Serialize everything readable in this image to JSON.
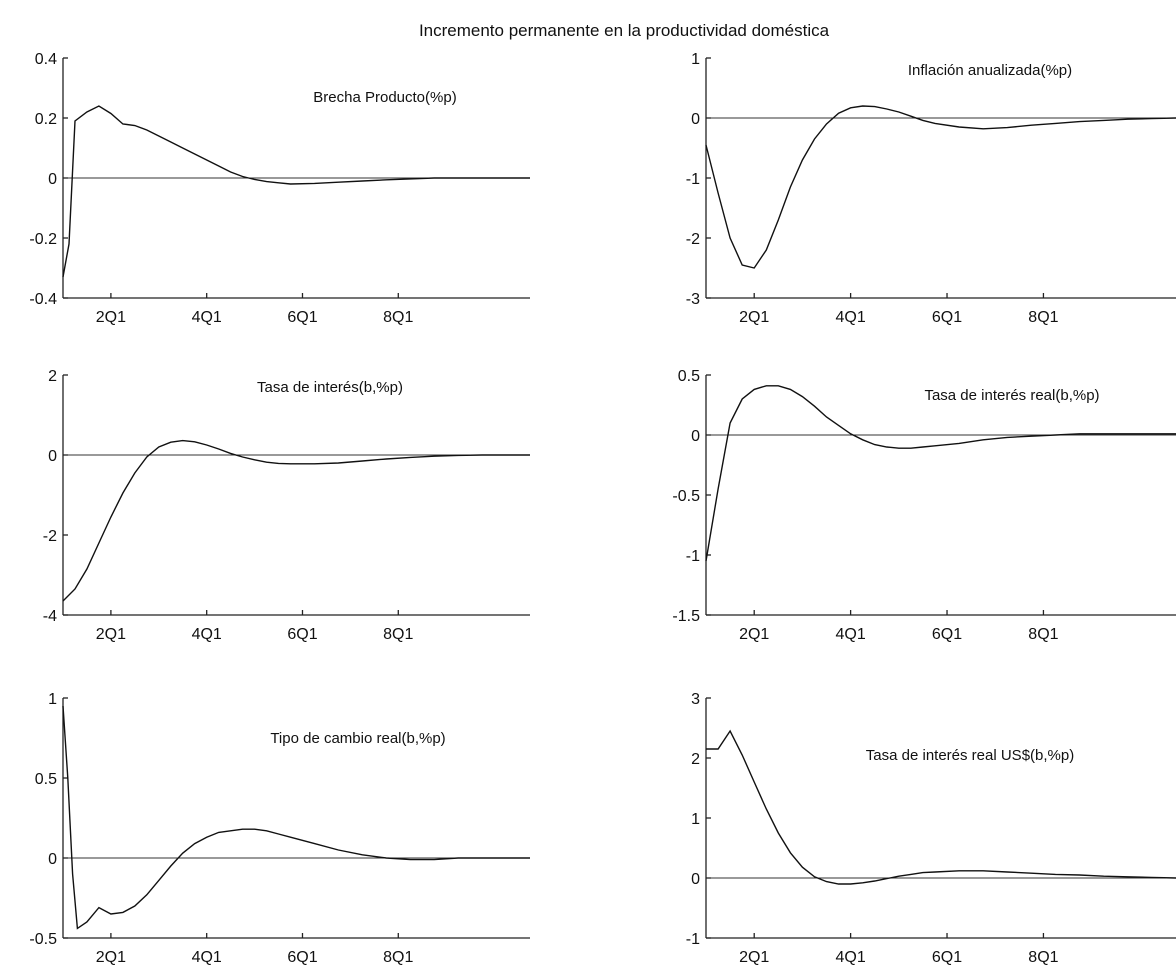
{
  "figure": {
    "title": "Incremento permanente en la productividad doméstica"
  },
  "chart_data": [
    {
      "type": "line",
      "title": "Brecha Producto(%p)",
      "x_tick_labels": [
        "2Q1",
        "4Q1",
        "6Q1",
        "8Q1"
      ],
      "x_tick_values": [
        5,
        13,
        21,
        29
      ],
      "xlim": [
        1,
        40
      ],
      "ylim": [
        -0.4,
        0.4
      ],
      "y_ticks": [
        -0.4,
        -0.2,
        0,
        0.2,
        0.4
      ],
      "y_tick_labels": [
        "-0.4",
        "-0.2",
        "0",
        "0.2",
        "0.4"
      ],
      "x": [
        1,
        1.5,
        2,
        3,
        4,
        5,
        6,
        7,
        8,
        9,
        10,
        11,
        12,
        13,
        14,
        15,
        16,
        17,
        18,
        19,
        20,
        22,
        24,
        26,
        28,
        30,
        32,
        34,
        36,
        38,
        40
      ],
      "values": [
        -0.33,
        -0.22,
        0.19,
        0.22,
        0.24,
        0.215,
        0.18,
        0.175,
        0.16,
        0.14,
        0.12,
        0.1,
        0.08,
        0.06,
        0.04,
        0.02,
        0.005,
        -0.005,
        -0.012,
        -0.016,
        -0.02,
        -0.018,
        -0.014,
        -0.01,
        -0.006,
        -0.003,
        0,
        0,
        0,
        0,
        0
      ]
    },
    {
      "type": "line",
      "title": "Inflación anualizada(%p)",
      "x_tick_labels": [
        "2Q1",
        "4Q1",
        "6Q1",
        "8Q1"
      ],
      "x_tick_values": [
        5,
        13,
        21,
        29
      ],
      "xlim": [
        1,
        40
      ],
      "ylim": [
        -3,
        1
      ],
      "y_ticks": [
        -3,
        -2,
        -1,
        0,
        1
      ],
      "y_tick_labels": [
        "-3",
        "-2",
        "-1",
        "0",
        "1"
      ],
      "x": [
        1,
        2,
        3,
        4,
        5,
        6,
        7,
        8,
        9,
        10,
        11,
        12,
        13,
        14,
        15,
        16,
        17,
        18,
        19,
        20,
        22,
        24,
        26,
        28,
        30,
        32,
        34,
        36,
        38,
        40
      ],
      "values": [
        -0.45,
        -1.25,
        -2.0,
        -2.45,
        -2.5,
        -2.2,
        -1.7,
        -1.15,
        -0.7,
        -0.35,
        -0.1,
        0.08,
        0.17,
        0.2,
        0.19,
        0.15,
        0.1,
        0.03,
        -0.04,
        -0.09,
        -0.15,
        -0.18,
        -0.16,
        -0.12,
        -0.09,
        -0.06,
        -0.04,
        -0.02,
        -0.01,
        0
      ]
    },
    {
      "type": "line",
      "title": "Tasa de interés(b,%p)",
      "x_tick_labels": [
        "2Q1",
        "4Q1",
        "6Q1",
        "8Q1"
      ],
      "x_tick_values": [
        5,
        13,
        21,
        29
      ],
      "xlim": [
        1,
        40
      ],
      "ylim": [
        -4,
        2
      ],
      "y_ticks": [
        -4,
        -2,
        0,
        2
      ],
      "y_tick_labels": [
        "-4",
        "-2",
        "0",
        "2"
      ],
      "x": [
        1,
        2,
        3,
        4,
        5,
        6,
        7,
        8,
        9,
        10,
        11,
        12,
        13,
        14,
        15,
        16,
        17,
        18,
        19,
        20,
        22,
        24,
        26,
        28,
        30,
        32,
        34,
        36,
        38,
        40
      ],
      "values": [
        -3.65,
        -3.35,
        -2.85,
        -2.2,
        -1.55,
        -0.95,
        -0.45,
        -0.05,
        0.2,
        0.32,
        0.36,
        0.33,
        0.25,
        0.15,
        0.04,
        -0.05,
        -0.12,
        -0.18,
        -0.21,
        -0.22,
        -0.22,
        -0.2,
        -0.15,
        -0.1,
        -0.06,
        -0.03,
        -0.01,
        0,
        0,
        0
      ]
    },
    {
      "type": "line",
      "title": "Tasa de interés real(b,%p)",
      "x_tick_labels": [
        "2Q1",
        "4Q1",
        "6Q1",
        "8Q1"
      ],
      "x_tick_values": [
        5,
        13,
        21,
        29
      ],
      "xlim": [
        1,
        40
      ],
      "ylim": [
        -1.5,
        0.5
      ],
      "y_ticks": [
        -1.5,
        -1,
        -0.5,
        0,
        0.5
      ],
      "y_tick_labels": [
        "-1.5",
        "-1",
        "-0.5",
        "0",
        "0.5"
      ],
      "x": [
        1,
        2,
        3,
        4,
        5,
        6,
        7,
        8,
        9,
        10,
        11,
        12,
        13,
        14,
        15,
        16,
        17,
        18,
        19,
        20,
        22,
        24,
        26,
        28,
        30,
        32,
        34,
        36,
        38,
        40
      ],
      "values": [
        -1.05,
        -0.45,
        0.1,
        0.3,
        0.38,
        0.41,
        0.41,
        0.38,
        0.32,
        0.24,
        0.15,
        0.08,
        0.01,
        -0.04,
        -0.08,
        -0.1,
        -0.11,
        -0.11,
        -0.1,
        -0.09,
        -0.07,
        -0.04,
        -0.02,
        -0.01,
        0,
        0.01,
        0.01,
        0.01,
        0.01,
        0.01
      ]
    },
    {
      "type": "line",
      "title": "Tipo de cambio real(b,%p)",
      "x_tick_labels": [
        "2Q1",
        "4Q1",
        "6Q1",
        "8Q1"
      ],
      "x_tick_values": [
        5,
        13,
        21,
        29
      ],
      "xlim": [
        1,
        40
      ],
      "ylim": [
        -0.5,
        1
      ],
      "y_ticks": [
        -0.5,
        0,
        0.5,
        1
      ],
      "y_tick_labels": [
        "-0.5",
        "0",
        "0.5",
        "1"
      ],
      "x": [
        1,
        1.4,
        1.8,
        2.2,
        3,
        4,
        5,
        6,
        7,
        8,
        9,
        10,
        11,
        12,
        13,
        14,
        15,
        16,
        17,
        18,
        19,
        20,
        22,
        24,
        26,
        28,
        30,
        32,
        34,
        36,
        38,
        40
      ],
      "values": [
        0.95,
        0.5,
        -0.1,
        -0.44,
        -0.4,
        -0.31,
        -0.35,
        -0.34,
        -0.3,
        -0.23,
        -0.14,
        -0.05,
        0.03,
        0.09,
        0.13,
        0.16,
        0.17,
        0.18,
        0.18,
        0.17,
        0.15,
        0.13,
        0.09,
        0.05,
        0.02,
        0,
        -0.01,
        -0.01,
        0,
        0,
        0,
        0
      ]
    },
    {
      "type": "line",
      "title": "Tasa de interés real US$(b,%p)",
      "x_tick_labels": [
        "2Q1",
        "4Q1",
        "6Q1",
        "8Q1"
      ],
      "x_tick_values": [
        5,
        13,
        21,
        29
      ],
      "xlim": [
        1,
        40
      ],
      "ylim": [
        -1,
        3
      ],
      "y_ticks": [
        -1,
        0,
        1,
        2,
        3
      ],
      "y_tick_labels": [
        "-1",
        "0",
        "1",
        "2",
        "3"
      ],
      "x": [
        1,
        2,
        3,
        4,
        5,
        6,
        7,
        8,
        9,
        10,
        11,
        12,
        13,
        14,
        15,
        16,
        17,
        18,
        19,
        20,
        22,
        24,
        26,
        28,
        30,
        32,
        34,
        36,
        38,
        40
      ],
      "values": [
        2.15,
        2.15,
        2.45,
        2.05,
        1.6,
        1.15,
        0.75,
        0.42,
        0.18,
        0.02,
        -0.06,
        -0.1,
        -0.1,
        -0.08,
        -0.05,
        -0.01,
        0.03,
        0.06,
        0.09,
        0.1,
        0.12,
        0.12,
        0.1,
        0.08,
        0.06,
        0.05,
        0.03,
        0.02,
        0.01,
        0
      ]
    }
  ]
}
